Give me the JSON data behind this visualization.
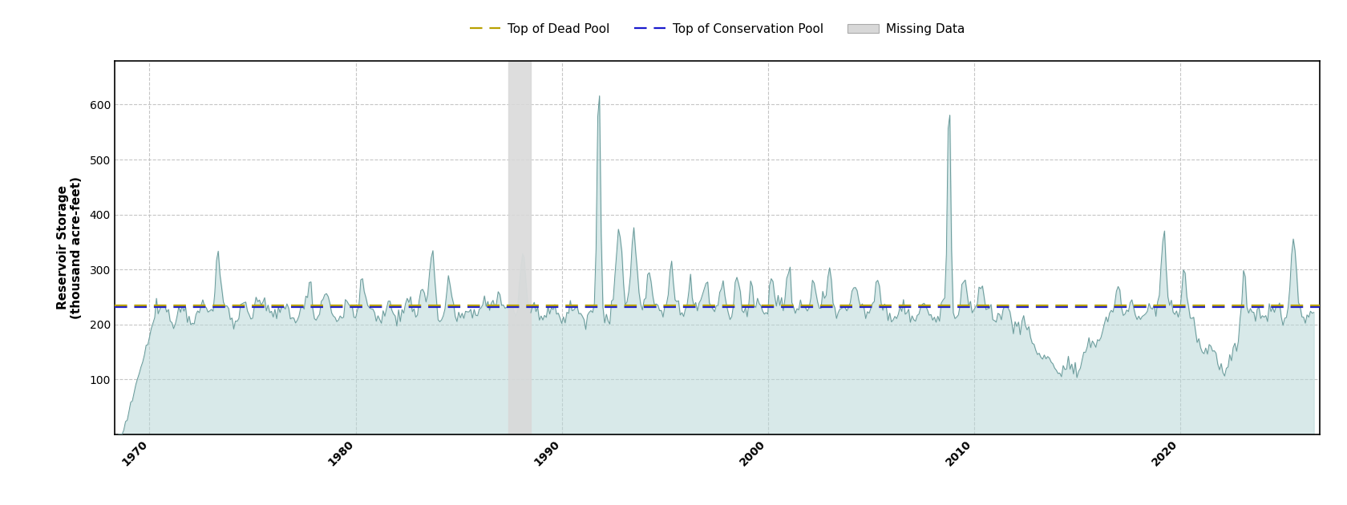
{
  "title": "",
  "ylabel": "Reservoir Storage\n(thousand acre-feet)",
  "xlabel": "",
  "xlim_start": 1968.3,
  "xlim_end": 2026.8,
  "ylim": [
    0,
    680
  ],
  "yticks": [
    100,
    200,
    300,
    400,
    500,
    600
  ],
  "xticks": [
    1970,
    1980,
    1990,
    2000,
    2010,
    2020
  ],
  "conservation_pool_level": 232,
  "dead_pool_level": 234,
  "missing_data_start": 1987.4,
  "missing_data_end": 1988.5,
  "line_color": "#6a9a9a",
  "fill_color": "#b8d8d8",
  "fill_alpha": 0.55,
  "conservation_color": "#1a1acd",
  "dead_pool_color": "#b8a000",
  "missing_data_color": "#d8d8d8",
  "background_color": "#ffffff",
  "grid_color": "#c0c0c0",
  "legend_fontsize": 11,
  "axis_fontsize": 11,
  "tick_fontsize": 10
}
